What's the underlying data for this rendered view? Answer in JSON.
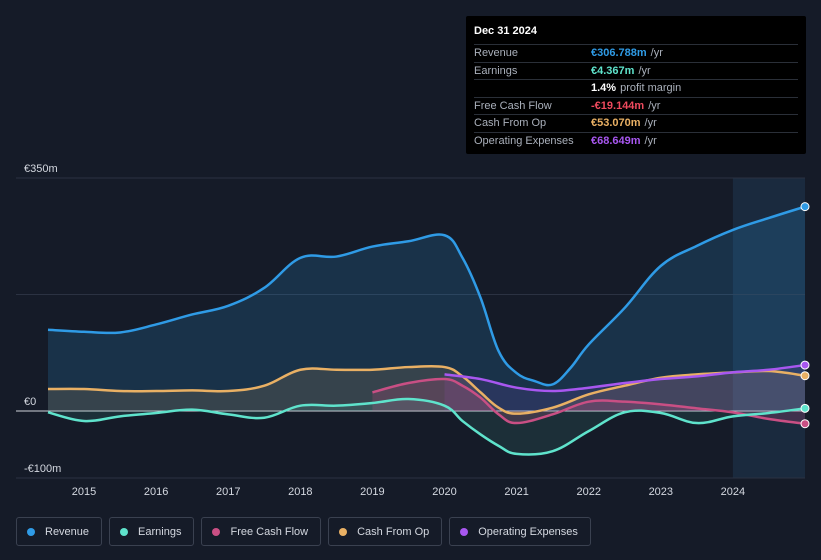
{
  "tooltip": {
    "date": "Dec 31 2024",
    "rows": [
      {
        "label": "Revenue",
        "value": "€306.788m",
        "unit": "/yr",
        "color": "#2f9be6"
      },
      {
        "label": "Earnings",
        "value": "€4.367m",
        "unit": "/yr",
        "color": "#5fe3cc"
      },
      {
        "label": "",
        "value": "1.4%",
        "unit": "profit margin",
        "color": "#ffffff"
      },
      {
        "label": "Free Cash Flow",
        "value": "-€19.144m",
        "unit": "/yr",
        "color": "#ef4a5e"
      },
      {
        "label": "Cash From Op",
        "value": "€53.070m",
        "unit": "/yr",
        "color": "#e9b064"
      },
      {
        "label": "Operating Expenses",
        "value": "€68.649m",
        "unit": "/yr",
        "color": "#a857f0"
      }
    ]
  },
  "legend": [
    {
      "label": "Revenue",
      "color": "#2f9be6"
    },
    {
      "label": "Earnings",
      "color": "#5fe3cc"
    },
    {
      "label": "Free Cash Flow",
      "color": "#c94f84"
    },
    {
      "label": "Cash From Op",
      "color": "#e9b064"
    },
    {
      "label": "Operating Expenses",
      "color": "#a857f0"
    }
  ],
  "chart_data": {
    "type": "area",
    "title": "",
    "xlabel": "",
    "ylabel": "",
    "ylim": [
      -100,
      350
    ],
    "xlim": [
      2014.5,
      2025.0
    ],
    "y_tick_labels": [
      "€350m",
      "€0",
      "-€100m"
    ],
    "y_ticks": [
      350,
      0,
      -100
    ],
    "x_tick_labels": [
      "2015",
      "2016",
      "2017",
      "2018",
      "2019",
      "2020",
      "2021",
      "2022",
      "2023",
      "2024"
    ],
    "x_ticks": [
      2015,
      2016,
      2017,
      2018,
      2019,
      2020,
      2021,
      2022,
      2023,
      2024
    ],
    "highlight_from": 2024.0,
    "series": [
      {
        "name": "Revenue",
        "color": "#2f9be6",
        "x": [
          2014.5,
          2015.0,
          2015.5,
          2016.0,
          2016.5,
          2017.0,
          2017.5,
          2018.0,
          2018.5,
          2019.0,
          2019.5,
          2020.0,
          2020.25,
          2020.5,
          2020.75,
          2021.0,
          2021.25,
          2021.5,
          2021.75,
          2022.0,
          2022.5,
          2023.0,
          2023.5,
          2024.0,
          2024.5,
          2025.0
        ],
        "values": [
          122,
          119,
          118,
          130,
          145,
          158,
          185,
          230,
          232,
          247,
          255,
          264,
          230,
          170,
          90,
          57,
          45,
          40,
          65,
          100,
          155,
          218,
          248,
          272,
          290,
          307
        ]
      },
      {
        "name": "Earnings",
        "color": "#5fe3cc",
        "x": [
          2014.5,
          2015.0,
          2015.5,
          2016.0,
          2016.5,
          2017.0,
          2017.5,
          2018.0,
          2018.5,
          2019.0,
          2019.5,
          2020.0,
          2020.25,
          2020.5,
          2020.75,
          2021.0,
          2021.5,
          2022.0,
          2022.5,
          2023.0,
          2023.5,
          2024.0,
          2024.5,
          2025.0
        ],
        "values": [
          -2,
          -15,
          -8,
          -3,
          2,
          -5,
          -10,
          8,
          8,
          12,
          18,
          8,
          -15,
          -35,
          -52,
          -64,
          -60,
          -30,
          -2,
          -3,
          -18,
          -8,
          -3,
          4
        ]
      },
      {
        "name": "Free Cash Flow",
        "color": "#c94f84",
        "x": [
          2019.0,
          2019.5,
          2020.0,
          2020.25,
          2020.5,
          2020.75,
          2021.0,
          2021.5,
          2022.0,
          2022.5,
          2023.0,
          2023.5,
          2024.0,
          2024.5,
          2025.0
        ],
        "values": [
          28,
          42,
          48,
          38,
          20,
          -5,
          -18,
          -5,
          14,
          14,
          10,
          4,
          -2,
          -12,
          -19
        ]
      },
      {
        "name": "Cash From Op",
        "color": "#e9b064",
        "x": [
          2014.5,
          2015.0,
          2015.5,
          2016.0,
          2016.5,
          2017.0,
          2017.5,
          2018.0,
          2018.5,
          2019.0,
          2019.5,
          2020.0,
          2020.25,
          2020.5,
          2020.75,
          2021.0,
          2021.5,
          2022.0,
          2022.5,
          2023.0,
          2023.5,
          2024.0,
          2024.5,
          2025.0
        ],
        "values": [
          33,
          33,
          30,
          30,
          31,
          30,
          38,
          62,
          62,
          62,
          66,
          66,
          52,
          28,
          5,
          -4,
          5,
          25,
          38,
          50,
          55,
          58,
          60,
          53
        ]
      },
      {
        "name": "Operating Expenses",
        "color": "#a857f0",
        "x": [
          2020.0,
          2020.5,
          2021.0,
          2021.5,
          2022.0,
          2022.5,
          2023.0,
          2023.5,
          2024.0,
          2024.5,
          2025.0
        ],
        "values": [
          55,
          48,
          35,
          30,
          35,
          42,
          48,
          52,
          58,
          62,
          69
        ]
      }
    ]
  }
}
